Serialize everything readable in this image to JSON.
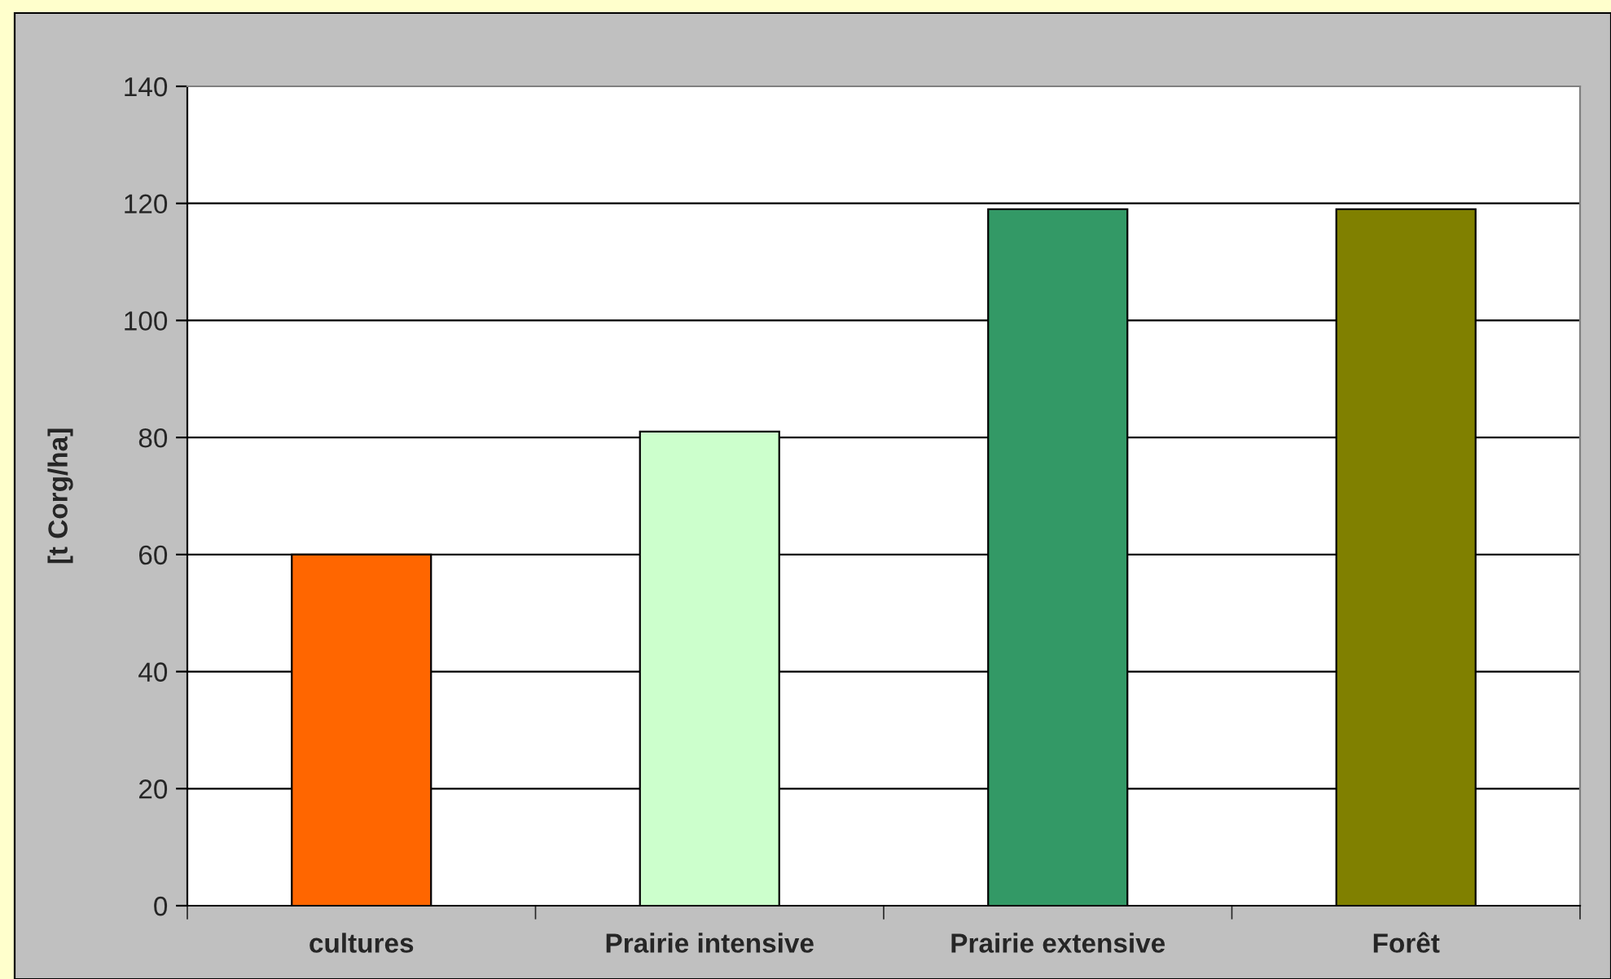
{
  "chart_data": {
    "type": "bar",
    "ylabel": "[t Corg/ha]",
    "categories": [
      "cultures",
      "Prairie intensive",
      "Prairie extensive",
      "Forêt"
    ],
    "values": [
      60,
      81,
      119,
      119
    ],
    "colors": [
      "#ff6600",
      "#ccffcc",
      "#339966",
      "#808000"
    ],
    "ylim": [
      0,
      140
    ],
    "yticks": [
      0,
      20,
      40,
      60,
      80,
      100,
      120,
      140
    ],
    "grid": "y"
  }
}
